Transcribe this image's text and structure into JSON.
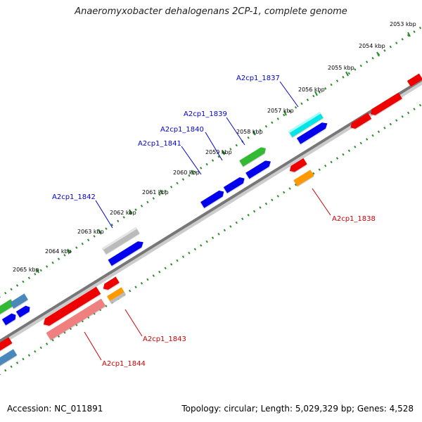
{
  "title": "Anaeromyxobacter dehalogenans 2CP-1, complete genome",
  "accession": "Accession: NC_011891",
  "summary": "Topology: circular; Length: 5,029,329 bp; Genes: 4,528",
  "kbp_labels": [
    "2053 kbp",
    "2054 kbp",
    "2055 kbp",
    "2056 kbp",
    "2057 kbp",
    "2058 kbp",
    "2059 kbp",
    "2060 kbp",
    "2061 kbp",
    "2062 kbp",
    "2063 kbp",
    "2064 kbp",
    "2065 kbp"
  ],
  "gene_labels": {
    "g1837": "A2cp1_1837",
    "g1838": "A2cp1_1838",
    "g1839": "A2cp1_1839",
    "g1840": "A2cp1_1840",
    "g1841": "A2cp1_1841",
    "g1842": "A2cp1_1842",
    "g1843": "A2cp1_1843",
    "g1844": "A2cp1_1844"
  },
  "colors": {
    "forward_label": "#0000cc",
    "reverse_label": "#cc0000",
    "backbone": "#777777",
    "ruler": "#2e8b2e",
    "blue": "#0000ee",
    "red": "#ee0000",
    "green": "#33bb33",
    "cyan": "#00e5e5",
    "orange": "#ff9900",
    "gray": "#bbbbbb",
    "pink": "#f08080",
    "steel": "#4a88bb"
  }
}
